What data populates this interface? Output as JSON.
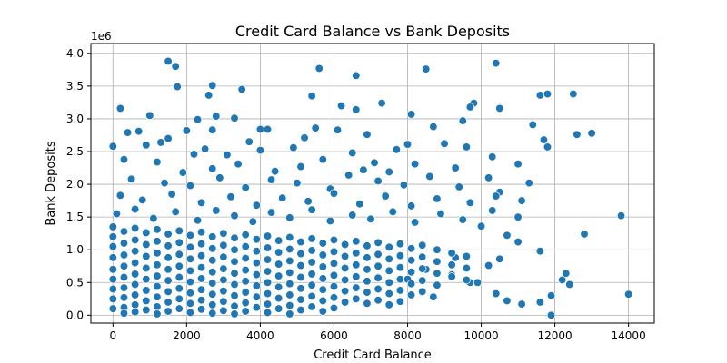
{
  "chart_data": {
    "type": "scatter",
    "title": "Credit Card Balance vs Bank Deposits",
    "xlabel": "Credit Card Balance",
    "ylabel": "Bank Deposits",
    "y_offset_label": "1e6",
    "xlim": [
      -600,
      14700
    ],
    "ylim": [
      -0.12,
      4.15
    ],
    "xticks": [
      0,
      2000,
      4000,
      6000,
      8000,
      10000,
      12000,
      14000
    ],
    "xtick_labels": [
      "0",
      "2000",
      "4000",
      "6000",
      "8000",
      "10000",
      "12000",
      "14000"
    ],
    "yticks": [
      0.0,
      0.5,
      1.0,
      1.5,
      2.0,
      2.5,
      3.0,
      3.5,
      4.0
    ],
    "ytick_labels": [
      "0.0",
      "0.5",
      "1.0",
      "1.5",
      "2.0",
      "2.5",
      "3.0",
      "3.5",
      "4.0"
    ],
    "grid": true,
    "marker_color": "#1f77b4",
    "marker_edge_color": "#ffffff",
    "points": [
      [
        1500,
        3.88
      ],
      [
        1700,
        3.8
      ],
      [
        5600,
        3.77
      ],
      [
        8500,
        3.76
      ],
      [
        6600,
        3.66
      ],
      [
        10400,
        3.85
      ],
      [
        2700,
        3.51
      ],
      [
        1750,
        3.49
      ],
      [
        3500,
        3.45
      ],
      [
        12500,
        3.38
      ],
      [
        11800,
        3.38
      ],
      [
        11600,
        3.36
      ],
      [
        5400,
        3.35
      ],
      [
        2600,
        3.36
      ],
      [
        200,
        3.16
      ],
      [
        6200,
        3.2
      ],
      [
        7300,
        3.24
      ],
      [
        9800,
        3.24
      ],
      [
        10500,
        3.16
      ],
      [
        9700,
        3.18
      ],
      [
        6600,
        3.14
      ],
      [
        8100,
        3.07
      ],
      [
        1000,
        3.05
      ],
      [
        2800,
        3.04
      ],
      [
        3300,
        3.01
      ],
      [
        2300,
        2.99
      ],
      [
        9500,
        2.97
      ],
      [
        11400,
        2.91
      ],
      [
        8700,
        2.88
      ],
      [
        12600,
        2.76
      ],
      [
        13000,
        2.78
      ],
      [
        4000,
        2.84
      ],
      [
        4200,
        2.84
      ],
      [
        5500,
        2.86
      ],
      [
        2700,
        2.83
      ],
      [
        400,
        2.79
      ],
      [
        700,
        2.81
      ],
      [
        1500,
        2.7
      ],
      [
        1300,
        2.64
      ],
      [
        2000,
        2.82
      ],
      [
        9000,
        2.62
      ],
      [
        11700,
        2.68
      ],
      [
        11800,
        2.57
      ],
      [
        6100,
        2.83
      ],
      [
        6900,
        2.76
      ],
      [
        7700,
        2.53
      ],
      [
        5200,
        2.71
      ],
      [
        3700,
        2.65
      ],
      [
        0,
        2.58
      ],
      [
        900,
        2.6
      ],
      [
        2200,
        2.46
      ],
      [
        2500,
        2.54
      ],
      [
        3100,
        2.45
      ],
      [
        4000,
        2.52
      ],
      [
        4900,
        2.56
      ],
      [
        6500,
        2.48
      ],
      [
        7100,
        2.33
      ],
      [
        8000,
        2.61
      ],
      [
        9600,
        2.57
      ],
      [
        10300,
        2.42
      ],
      [
        300,
        2.38
      ],
      [
        1200,
        2.34
      ],
      [
        1900,
        2.18
      ],
      [
        2700,
        2.24
      ],
      [
        3400,
        2.31
      ],
      [
        4400,
        2.2
      ],
      [
        5100,
        2.27
      ],
      [
        5700,
        2.38
      ],
      [
        6800,
        2.22
      ],
      [
        7500,
        2.19
      ],
      [
        8200,
        2.31
      ],
      [
        9300,
        2.25
      ],
      [
        10200,
        2.1
      ],
      [
        11000,
        2.31
      ],
      [
        500,
        2.08
      ],
      [
        1400,
        2.02
      ],
      [
        2100,
        1.98
      ],
      [
        2900,
        2.1
      ],
      [
        3600,
        1.95
      ],
      [
        4300,
        2.07
      ],
      [
        5000,
        2.02
      ],
      [
        5900,
        1.93
      ],
      [
        6400,
        2.14
      ],
      [
        7200,
        2.05
      ],
      [
        7900,
        1.99
      ],
      [
        8600,
        2.12
      ],
      [
        9400,
        1.96
      ],
      [
        10500,
        1.88
      ],
      [
        11300,
        2.02
      ],
      [
        200,
        1.83
      ],
      [
        800,
        1.76
      ],
      [
        1600,
        1.85
      ],
      [
        2400,
        1.72
      ],
      [
        3200,
        1.81
      ],
      [
        3900,
        1.68
      ],
      [
        4600,
        1.79
      ],
      [
        5300,
        1.74
      ],
      [
        6000,
        1.86
      ],
      [
        6700,
        1.7
      ],
      [
        7400,
        1.82
      ],
      [
        8100,
        1.67
      ],
      [
        8800,
        1.78
      ],
      [
        9700,
        1.72
      ],
      [
        10400,
        1.82
      ],
      [
        11100,
        1.75
      ],
      [
        100,
        1.55
      ],
      [
        600,
        1.62
      ],
      [
        1100,
        1.48
      ],
      [
        1700,
        1.58
      ],
      [
        2300,
        1.45
      ],
      [
        2800,
        1.6
      ],
      [
        3300,
        1.52
      ],
      [
        3800,
        1.43
      ],
      [
        4300,
        1.57
      ],
      [
        4800,
        1.49
      ],
      [
        5400,
        1.61
      ],
      [
        5900,
        1.44
      ],
      [
        6500,
        1.53
      ],
      [
        7000,
        1.47
      ],
      [
        7600,
        1.58
      ],
      [
        8200,
        1.42
      ],
      [
        8900,
        1.55
      ],
      [
        9500,
        1.46
      ],
      [
        10300,
        1.6
      ],
      [
        11000,
        1.5
      ],
      [
        13800,
        1.52
      ],
      [
        12800,
        1.24
      ],
      [
        10000,
        1.36
      ],
      [
        10700,
        1.22
      ],
      [
        11600,
        0.98
      ],
      [
        11000,
        1.12
      ],
      [
        12200,
        0.54
      ],
      [
        12300,
        0.64
      ],
      [
        12400,
        0.47
      ],
      [
        11900,
        0.3
      ],
      [
        11600,
        0.2
      ],
      [
        11100,
        0.17
      ],
      [
        11900,
        0.0
      ],
      [
        14000,
        0.32
      ],
      [
        10700,
        0.22
      ],
      [
        10400,
        0.33
      ],
      [
        9900,
        0.5
      ],
      [
        10200,
        0.76
      ],
      [
        10500,
        0.86
      ],
      [
        9700,
        0.5
      ],
      [
        9200,
        0.62
      ],
      [
        8700,
        0.28
      ],
      [
        9300,
        0.88
      ],
      [
        8500,
        0.7
      ],
      [
        8000,
        0.55
      ],
      [
        0,
        1.35
      ],
      [
        0,
        1.2
      ],
      [
        0,
        1.05
      ],
      [
        0,
        0.88
      ],
      [
        0,
        0.7
      ],
      [
        0,
        0.55
      ],
      [
        0,
        0.4
      ],
      [
        0,
        0.25
      ],
      [
        0,
        0.1
      ],
      [
        300,
        1.28
      ],
      [
        300,
        1.1
      ],
      [
        300,
        0.92
      ],
      [
        300,
        0.75
      ],
      [
        300,
        0.58
      ],
      [
        300,
        0.42
      ],
      [
        300,
        0.27
      ],
      [
        300,
        0.12
      ],
      [
        300,
        0.03
      ],
      [
        600,
        1.33
      ],
      [
        600,
        1.15
      ],
      [
        600,
        0.98
      ],
      [
        600,
        0.8
      ],
      [
        600,
        0.63
      ],
      [
        600,
        0.47
      ],
      [
        600,
        0.31
      ],
      [
        600,
        0.16
      ],
      [
        600,
        0.05
      ],
      [
        900,
        1.26
      ],
      [
        900,
        1.08
      ],
      [
        900,
        0.9
      ],
      [
        900,
        0.72
      ],
      [
        900,
        0.55
      ],
      [
        900,
        0.38
      ],
      [
        900,
        0.22
      ],
      [
        900,
        0.08
      ],
      [
        1200,
        1.31
      ],
      [
        1200,
        1.13
      ],
      [
        1200,
        0.95
      ],
      [
        1200,
        0.77
      ],
      [
        1200,
        0.6
      ],
      [
        1200,
        0.44
      ],
      [
        1200,
        0.28
      ],
      [
        1200,
        0.13
      ],
      [
        1200,
        0.02
      ],
      [
        1500,
        1.24
      ],
      [
        1500,
        1.06
      ],
      [
        1500,
        0.88
      ],
      [
        1500,
        0.7
      ],
      [
        1500,
        0.53
      ],
      [
        1500,
        0.36
      ],
      [
        1500,
        0.2
      ],
      [
        1500,
        0.06
      ],
      [
        1800,
        1.29
      ],
      [
        1800,
        1.11
      ],
      [
        1800,
        0.93
      ],
      [
        1800,
        0.75
      ],
      [
        1800,
        0.58
      ],
      [
        1800,
        0.41
      ],
      [
        1800,
        0.25
      ],
      [
        1800,
        0.1
      ],
      [
        2100,
        1.22
      ],
      [
        2100,
        1.04
      ],
      [
        2100,
        0.86
      ],
      [
        2100,
        0.68
      ],
      [
        2100,
        0.51
      ],
      [
        2100,
        0.34
      ],
      [
        2100,
        0.18
      ],
      [
        2100,
        0.04
      ],
      [
        2400,
        1.27
      ],
      [
        2400,
        1.09
      ],
      [
        2400,
        0.91
      ],
      [
        2400,
        0.73
      ],
      [
        2400,
        0.56
      ],
      [
        2400,
        0.39
      ],
      [
        2400,
        0.23
      ],
      [
        2400,
        0.09
      ],
      [
        2700,
        1.2
      ],
      [
        2700,
        1.02
      ],
      [
        2700,
        0.84
      ],
      [
        2700,
        0.66
      ],
      [
        2700,
        0.49
      ],
      [
        2700,
        0.32
      ],
      [
        2700,
        0.16
      ],
      [
        2700,
        0.03
      ],
      [
        3000,
        1.25
      ],
      [
        3000,
        1.07
      ],
      [
        3000,
        0.89
      ],
      [
        3000,
        0.71
      ],
      [
        3000,
        0.54
      ],
      [
        3000,
        0.37
      ],
      [
        3000,
        0.21
      ],
      [
        3000,
        0.07
      ],
      [
        3300,
        1.18
      ],
      [
        3300,
        1.0
      ],
      [
        3300,
        0.82
      ],
      [
        3300,
        0.64
      ],
      [
        3300,
        0.47
      ],
      [
        3300,
        0.3
      ],
      [
        3300,
        0.14
      ],
      [
        3300,
        0.02
      ],
      [
        3600,
        1.23
      ],
      [
        3600,
        1.05
      ],
      [
        3600,
        0.87
      ],
      [
        3600,
        0.69
      ],
      [
        3600,
        0.52
      ],
      [
        3600,
        0.35
      ],
      [
        3600,
        0.19
      ],
      [
        3600,
        0.06
      ],
      [
        3900,
        1.16
      ],
      [
        3900,
        0.98
      ],
      [
        3900,
        0.8
      ],
      [
        3900,
        0.62
      ],
      [
        3900,
        0.45
      ],
      [
        3900,
        0.28
      ],
      [
        3900,
        0.12
      ],
      [
        4200,
        1.21
      ],
      [
        4200,
        1.03
      ],
      [
        4200,
        0.85
      ],
      [
        4200,
        0.67
      ],
      [
        4200,
        0.5
      ],
      [
        4200,
        0.33
      ],
      [
        4200,
        0.17
      ],
      [
        4200,
        0.04
      ],
      [
        4500,
        1.14
      ],
      [
        4500,
        0.96
      ],
      [
        4500,
        0.78
      ],
      [
        4500,
        0.6
      ],
      [
        4500,
        0.43
      ],
      [
        4500,
        0.26
      ],
      [
        4500,
        0.1
      ],
      [
        4800,
        1.19
      ],
      [
        4800,
        1.01
      ],
      [
        4800,
        0.83
      ],
      [
        4800,
        0.65
      ],
      [
        4800,
        0.48
      ],
      [
        4800,
        0.31
      ],
      [
        4800,
        0.15
      ],
      [
        4800,
        0.02
      ],
      [
        5100,
        1.12
      ],
      [
        5100,
        0.94
      ],
      [
        5100,
        0.76
      ],
      [
        5100,
        0.58
      ],
      [
        5100,
        0.41
      ],
      [
        5100,
        0.24
      ],
      [
        5100,
        0.08
      ],
      [
        5400,
        1.17
      ],
      [
        5400,
        0.99
      ],
      [
        5400,
        0.81
      ],
      [
        5400,
        0.63
      ],
      [
        5400,
        0.46
      ],
      [
        5400,
        0.29
      ],
      [
        5400,
        0.13
      ],
      [
        5700,
        1.1
      ],
      [
        5700,
        0.92
      ],
      [
        5700,
        0.74
      ],
      [
        5700,
        0.56
      ],
      [
        5700,
        0.39
      ],
      [
        5700,
        0.22
      ],
      [
        5700,
        0.06
      ],
      [
        6000,
        1.15
      ],
      [
        6000,
        0.97
      ],
      [
        6000,
        0.79
      ],
      [
        6000,
        0.61
      ],
      [
        6000,
        0.44
      ],
      [
        6000,
        0.27
      ],
      [
        6000,
        0.11
      ],
      [
        6300,
        1.08
      ],
      [
        6300,
        0.9
      ],
      [
        6300,
        0.72
      ],
      [
        6300,
        0.54
      ],
      [
        6300,
        0.37
      ],
      [
        6300,
        0.2
      ],
      [
        6600,
        1.13
      ],
      [
        6600,
        0.95
      ],
      [
        6600,
        0.77
      ],
      [
        6600,
        0.59
      ],
      [
        6600,
        0.42
      ],
      [
        6600,
        0.25
      ],
      [
        6900,
        1.06
      ],
      [
        6900,
        0.88
      ],
      [
        6900,
        0.7
      ],
      [
        6900,
        0.52
      ],
      [
        6900,
        0.35
      ],
      [
        6900,
        0.18
      ],
      [
        7200,
        1.11
      ],
      [
        7200,
        0.93
      ],
      [
        7200,
        0.75
      ],
      [
        7200,
        0.57
      ],
      [
        7200,
        0.4
      ],
      [
        7200,
        0.23
      ],
      [
        7500,
        1.04
      ],
      [
        7500,
        0.86
      ],
      [
        7500,
        0.68
      ],
      [
        7500,
        0.5
      ],
      [
        7500,
        0.33
      ],
      [
        7500,
        0.16
      ],
      [
        7800,
        1.09
      ],
      [
        7800,
        0.91
      ],
      [
        7800,
        0.73
      ],
      [
        7800,
        0.55
      ],
      [
        7800,
        0.38
      ],
      [
        7800,
        0.21
      ],
      [
        8100,
        1.02
      ],
      [
        8100,
        0.84
      ],
      [
        8100,
        0.66
      ],
      [
        8100,
        0.48
      ],
      [
        8100,
        0.31
      ],
      [
        8400,
        1.07
      ],
      [
        8400,
        0.89
      ],
      [
        8400,
        0.71
      ],
      [
        8400,
        0.53
      ],
      [
        8400,
        0.36
      ],
      [
        8800,
        1.0
      ],
      [
        8800,
        0.82
      ],
      [
        8800,
        0.64
      ],
      [
        8800,
        0.46
      ],
      [
        9200,
        0.95
      ],
      [
        9200,
        0.77
      ],
      [
        9200,
        0.59
      ],
      [
        9600,
        0.9
      ],
      [
        9600,
        0.72
      ],
      [
        9600,
        0.54
      ]
    ]
  }
}
